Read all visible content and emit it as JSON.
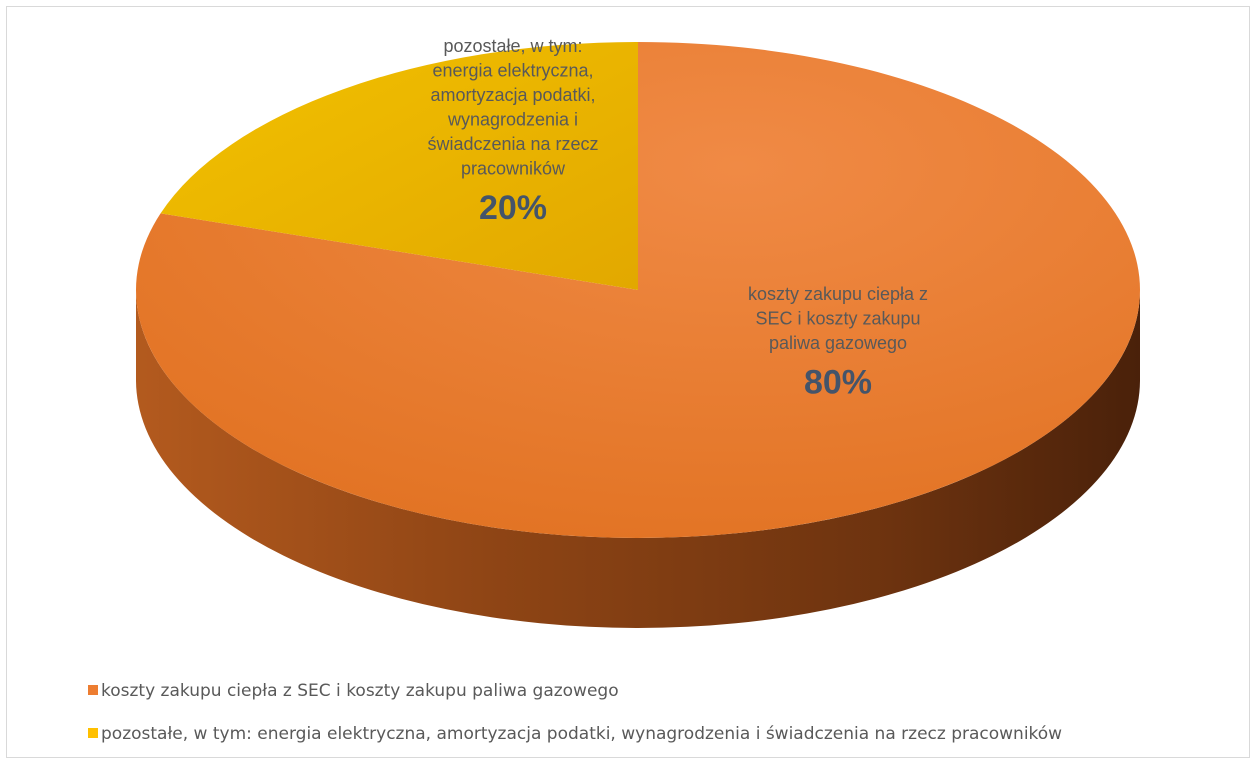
{
  "chart_data": {
    "type": "pie",
    "title": "",
    "style": "3d",
    "series": [
      {
        "name": "koszty zakupu ciepła z SEC i koszty zakupu paliwa gazowego",
        "value": 80,
        "label_lines": [
          "koszty zakupu ciepła z",
          "SEC i koszty zakupu",
          "paliwa gazowego"
        ],
        "percent_label": "80%",
        "color": "#ED7D31"
      },
      {
        "name": "pozostałe, w tym: energia elektryczna, amortyzacja podatki, wynagrodzenia i świadczenia na rzecz pracowników",
        "value": 20,
        "label_lines": [
          "pozostałe, w tym:",
          "energia elektryczna,",
          "amortyzacja podatki,",
          "wynagrodzenia i",
          "świadczenia na rzecz",
          "pracowników"
        ],
        "percent_label": "20%",
        "color": "#FFC000"
      }
    ],
    "legend_position": "bottom",
    "label_color": "#44546A"
  }
}
